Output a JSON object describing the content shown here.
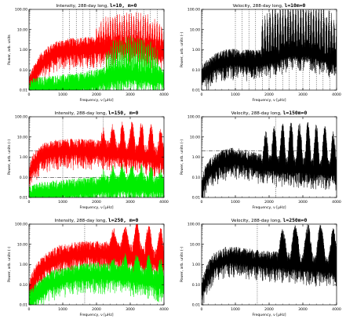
{
  "colors": {
    "intensity_power": "#ff0000",
    "intensity_secondary": "#00ee00",
    "velocity_power": "#000000",
    "guide_lines": "#000000"
  },
  "chart_data": [
    {
      "type": "line",
      "row": 0,
      "col": 0,
      "title": "Intensity, 288-day long,",
      "title_mode": "l=10, m=0",
      "xlabel": "Frequency, ν [μHz]",
      "ylabel": "Power, arb. units",
      "xlim": [
        0,
        4000
      ],
      "ylim": [
        0.01,
        100
      ],
      "yscale": "log",
      "xticks": [
        "0",
        "1000",
        "2000",
        "3000",
        "4000"
      ],
      "yticks": [
        "100.00",
        "10.00",
        "1.00",
        "0.10",
        "0.01"
      ],
      "series": [
        {
          "color": "#ff0000",
          "x": [
            0,
            150,
            300,
            500,
            700,
            900,
            1100,
            1300,
            1500,
            1800,
            2100,
            2400,
            2700,
            2900,
            3100,
            3300,
            3500,
            3700,
            4000
          ],
          "y": [
            0.015,
            0.05,
            0.15,
            0.35,
            0.6,
            0.8,
            0.95,
            1.05,
            1.1,
            1.2,
            1.2,
            1.3,
            1.5,
            1.7,
            1.6,
            1.4,
            1.2,
            1.0,
            0.85
          ],
          "peaks": {
            "start": 2000,
            "end": 4000,
            "count": 30,
            "max": 20
          }
        },
        {
          "color": "#00ee00",
          "x": [
            0,
            300,
            600,
            1000,
            1500,
            2000,
            2500,
            3000,
            3500,
            4000
          ],
          "y": [
            0.01,
            0.012,
            0.014,
            0.016,
            0.02,
            0.03,
            0.05,
            0.06,
            0.05,
            0.04
          ],
          "peaks": {
            "start": 2300,
            "end": 3800,
            "count": 24,
            "max": 1.5
          }
        }
      ],
      "vlines": [
        1000,
        1200,
        1400,
        1600,
        1800,
        2000,
        2200,
        2400,
        2600,
        2800,
        3000,
        3200,
        3400,
        3600,
        3800
      ]
    },
    {
      "type": "line",
      "row": 0,
      "col": 1,
      "title": "Velocity, 288-day long,",
      "title_mode": "l=10m=0",
      "xlabel": "Frequency, ν [μHz]",
      "ylabel": "Power, arb. units (-)",
      "xlim": [
        0,
        4000
      ],
      "ylim": [
        0.01,
        100
      ],
      "yscale": "log",
      "xticks": [
        "0",
        "1000",
        "2000",
        "3000",
        "4000"
      ],
      "yticks": [
        "100.00",
        "10.00",
        "1.00",
        "0.10",
        "0.01"
      ],
      "series": [
        {
          "color": "#000000",
          "x": [
            0,
            200,
            400,
            600,
            800,
            1000,
            1200,
            1400,
            1600,
            1800,
            2000,
            2200,
            2500,
            2800,
            3000,
            3300,
            3600,
            4000
          ],
          "y": [
            0.05,
            0.1,
            0.18,
            0.25,
            0.3,
            0.3,
            0.28,
            0.27,
            0.27,
            0.3,
            0.35,
            0.45,
            0.7,
            0.9,
            0.9,
            0.7,
            0.5,
            0.3
          ],
          "peaks": {
            "start": 1800,
            "end": 4000,
            "count": 30,
            "max": 60
          }
        }
      ],
      "vlines": [
        1000,
        1200,
        1400,
        1600,
        1800,
        2000,
        2200,
        2400,
        2600,
        2800,
        3000,
        3200,
        3400,
        3600,
        3800
      ]
    },
    {
      "type": "line",
      "row": 1,
      "col": 0,
      "title": "Intensity, 288-day long,",
      "title_mode": "l=150, m=0",
      "xlabel": "Frequency, ν [μHz]",
      "ylabel": "Power, arb. units (-)",
      "xlim": [
        0,
        4000
      ],
      "ylim": [
        0.01,
        100
      ],
      "yscale": "log",
      "xticks": [
        "0",
        "1000",
        "2000",
        "3000",
        "4000"
      ],
      "yticks": [
        "100.00",
        "10.00",
        "1.00",
        "0.10",
        "0.01"
      ],
      "series": [
        {
          "color": "#ff0000",
          "x": [
            0,
            100,
            300,
            500,
            800,
            1200,
            1600,
            2000,
            2400,
            2800,
            3200,
            3600,
            4000
          ],
          "y": [
            0.1,
            0.4,
            1.0,
            1.5,
            2.0,
            2.2,
            2.2,
            2.0,
            1.8,
            1.6,
            1.3,
            1.0,
            0.8
          ],
          "peaks": {
            "start": 2200,
            "end": 3900,
            "count": 7,
            "max": 15
          }
        },
        {
          "color": "#00ee00",
          "x": [
            0,
            300,
            800,
            1500,
            2000,
            2500,
            3000,
            3500,
            4000
          ],
          "y": [
            0.01,
            0.015,
            0.02,
            0.025,
            0.03,
            0.035,
            0.04,
            0.035,
            0.03
          ],
          "peaks": {
            "start": 2200,
            "end": 3900,
            "count": 7,
            "max": 0.1
          }
        }
      ],
      "hlines": [
        2,
        0.1
      ],
      "vlines": [
        1000,
        2200
      ]
    },
    {
      "type": "line",
      "row": 1,
      "col": 1,
      "title": "Velocity, 288-day long,",
      "title_mode": "l=150m=0",
      "xlabel": "Frequency, ν [μHz]",
      "ylabel": "Power, arb. units (-)",
      "xlim": [
        0,
        4000
      ],
      "ylim": [
        0.01,
        100
      ],
      "yscale": "log",
      "xticks": [
        "0",
        "1000",
        "2000",
        "3000",
        "4000"
      ],
      "yticks": [
        "100.00",
        "10.00",
        "1.00",
        "0.10",
        "0.01"
      ],
      "series": [
        {
          "color": "#000000",
          "x": [
            0,
            100,
            300,
            600,
            900,
            1200,
            1500,
            1800,
            2100,
            2400,
            2700,
            3000,
            3300,
            3600,
            4000
          ],
          "y": [
            0.02,
            0.1,
            0.3,
            0.6,
            0.8,
            0.7,
            0.5,
            0.4,
            0.35,
            0.3,
            0.3,
            0.28,
            0.25,
            0.22,
            0.2
          ],
          "peaks": {
            "start": 1900,
            "end": 3900,
            "count": 9,
            "max": 15
          }
        }
      ],
      "hlines": [
        2
      ],
      "vlines": [
        2200
      ]
    },
    {
      "type": "line",
      "row": 2,
      "col": 0,
      "title": "Intensity, 288-day long,",
      "title_mode": "l=250, m=0",
      "xlabel": "Frequency, ν [μHz]",
      "ylabel": "Power, arb. units (-)",
      "xlim": [
        0,
        4000
      ],
      "ylim": [
        0.01,
        100
      ],
      "yscale": "log",
      "xticks": [
        "0",
        "1000",
        "2000",
        "3000",
        "4000"
      ],
      "yticks": [
        "100.00",
        "10.00",
        "1.00",
        "0.10",
        "0.01"
      ],
      "series": [
        {
          "color": "#ff0000",
          "x": [
            0,
            200,
            500,
            900,
            1300,
            1700,
            2100,
            2500,
            2900,
            3300,
            3700,
            4000
          ],
          "y": [
            0.05,
            0.3,
            1.0,
            2.5,
            3.5,
            4.0,
            4.0,
            3.5,
            3.0,
            2.5,
            1.8,
            1.3
          ],
          "peaks": {
            "start": 2500,
            "end": 3900,
            "count": 5,
            "max": 30
          }
        },
        {
          "color": "#00ee00",
          "x": [
            0,
            300,
            600,
            1000,
            1500,
            2000,
            2500,
            3000,
            3500,
            4000
          ],
          "y": [
            0.015,
            0.05,
            0.12,
            0.2,
            0.3,
            0.35,
            0.3,
            0.25,
            0.18,
            0.12
          ],
          "peaks": {
            "start": 2500,
            "end": 3900,
            "count": 5,
            "max": 0.8
          }
        }
      ],
      "vlines": [
        1650
      ]
    },
    {
      "type": "line",
      "row": 2,
      "col": 1,
      "title": "Velocity, 288-day long,",
      "title_mode": "l=250m=0",
      "xlabel": "Frequency, ν [μHz]",
      "ylabel": "Power, arb. units (-)",
      "xlim": [
        0,
        4000
      ],
      "ylim": [
        0.01,
        100
      ],
      "yscale": "log",
      "xticks": [
        "0",
        "1000",
        "2000",
        "3000",
        "4000"
      ],
      "yticks": [
        "100.00",
        "10.00",
        "1.00",
        "0.10",
        "0.01"
      ],
      "series": [
        {
          "color": "#000000",
          "x": [
            0,
            200,
            400,
            700,
            1000,
            1300,
            1600,
            1900,
            2200,
            2500,
            2800,
            3100,
            3400,
            3700,
            4000
          ],
          "y": [
            0.05,
            0.4,
            1.2,
            2.0,
            2.0,
            1.8,
            1.5,
            1.3,
            1.2,
            1.1,
            1.0,
            0.9,
            0.8,
            0.7,
            0.6
          ],
          "peaks": {
            "start": 2400,
            "end": 3900,
            "count": 5,
            "max": 30
          }
        }
      ],
      "vlines": [
        1650
      ]
    }
  ]
}
